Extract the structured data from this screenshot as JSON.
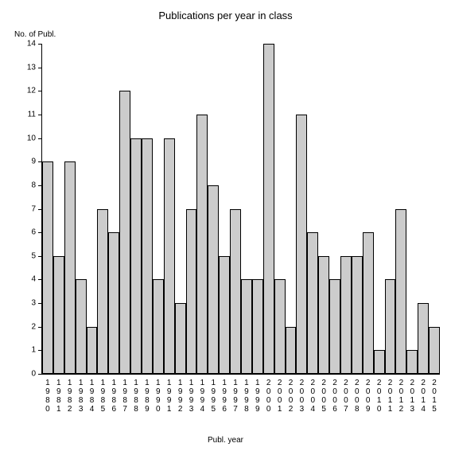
{
  "chart": {
    "type": "bar",
    "title": "Publications per year in class",
    "title_fontsize": 13,
    "ylabel": "No. of Publ.",
    "xlabel": "Publ. year",
    "label_fontsize": 10,
    "ylim": [
      0,
      14
    ],
    "ytick_step": 1,
    "background_color": "#ffffff",
    "bar_color": "#cccccc",
    "bar_border_color": "#000000",
    "axis_color": "#000000",
    "tick_font_size": 10,
    "bar_width": 1.0,
    "categories": [
      "1980",
      "1981",
      "1982",
      "1983",
      "1984",
      "1985",
      "1986",
      "1987",
      "1988",
      "1989",
      "1990",
      "1991",
      "1992",
      "1993",
      "1994",
      "1995",
      "1996",
      "1997",
      "1998",
      "1999",
      "2000",
      "2001",
      "2002",
      "2003",
      "2004",
      "2005",
      "2006",
      "2007",
      "2008",
      "2009",
      "2010",
      "2011",
      "2012",
      "2013",
      "2014",
      "2015"
    ],
    "values": [
      9,
      5,
      9,
      4,
      2,
      7,
      6,
      12,
      10,
      10,
      4,
      10,
      3,
      7,
      11,
      8,
      5,
      7,
      4,
      4,
      14,
      4,
      2,
      11,
      6,
      5,
      4,
      5,
      5,
      6,
      1,
      4,
      7,
      1,
      3,
      2
    ]
  }
}
